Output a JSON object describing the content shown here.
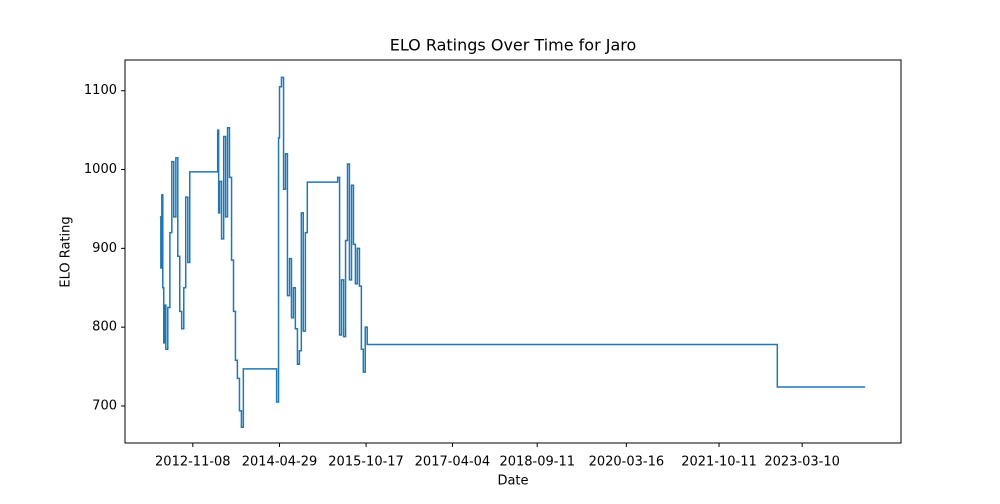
{
  "chart_data": {
    "type": "line",
    "drawstyle": "steps-post",
    "title": "ELO Ratings Over Time for Jaro",
    "xlabel": "Date",
    "ylabel": "ELO Rating",
    "color": "#1f77b4",
    "x": [
      "2012-04-18",
      "2012-04-24",
      "2012-04-30",
      "2012-05-06",
      "2012-05-12",
      "2012-05-19",
      "2012-05-25",
      "2012-06-06",
      "2012-06-19",
      "2012-07-01",
      "2012-07-13",
      "2012-07-26",
      "2012-08-07",
      "2012-08-19",
      "2012-08-31",
      "2012-09-13",
      "2012-09-25",
      "2012-10-08",
      "2012-10-20",
      "2013-04-11",
      "2013-04-17",
      "2013-04-23",
      "2013-05-05",
      "2013-05-18",
      "2013-05-30",
      "2013-06-11",
      "2013-06-23",
      "2013-07-06",
      "2013-07-18",
      "2013-07-30",
      "2013-08-11",
      "2013-08-24",
      "2013-09-05",
      "2013-09-17",
      "2014-04-11",
      "2014-04-23",
      "2014-04-29",
      "2014-05-11",
      "2014-05-24",
      "2014-06-05",
      "2014-06-17",
      "2014-06-30",
      "2014-07-12",
      "2014-07-24",
      "2014-08-05",
      "2014-08-18",
      "2014-08-30",
      "2014-09-11",
      "2014-09-23",
      "2014-10-06",
      "2014-10-18",
      "2015-04-24",
      "2015-05-06",
      "2015-05-18",
      "2015-05-31",
      "2015-06-12",
      "2015-06-24",
      "2015-07-06",
      "2015-07-19",
      "2015-07-31",
      "2015-08-12",
      "2015-08-24",
      "2015-09-06",
      "2015-09-18",
      "2015-09-30",
      "2015-10-12",
      "2015-10-24",
      "2022-10-07",
      "2024-04-03"
    ],
    "values": [
      940,
      875,
      968,
      850,
      780,
      828,
      772,
      825,
      920,
      1010,
      940,
      1015,
      890,
      820,
      798,
      850,
      965,
      882,
      997,
      1050,
      945,
      985,
      912,
      1042,
      940,
      1053,
      990,
      885,
      820,
      758,
      735,
      694,
      673,
      747,
      705,
      1040,
      1105,
      1117,
      975,
      1020,
      840,
      887,
      812,
      850,
      798,
      753,
      770,
      945,
      795,
      920,
      984,
      990,
      790,
      860,
      788,
      910,
      1007,
      860,
      980,
      905,
      855,
      900,
      852,
      772,
      743,
      800,
      778,
      724,
      724
    ],
    "xlim": [
      "2011-09-15",
      "2024-11-11"
    ],
    "xticks": [
      "2012-11-08",
      "2014-04-29",
      "2015-10-17",
      "2017-04-04",
      "2018-09-11",
      "2020-03-16",
      "2021-10-11",
      "2023-03-10"
    ],
    "ylim": [
      653,
      1139
    ],
    "yticks": [
      700,
      800,
      900,
      1000,
      1100
    ]
  }
}
